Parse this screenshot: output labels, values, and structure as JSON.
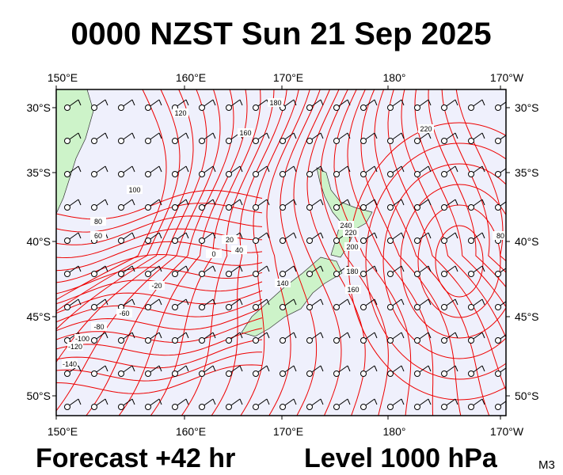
{
  "header": {
    "title": "0000 NZST Sun 21 Sep 2025"
  },
  "map": {
    "lon_labels_top": [
      "150°E",
      "160°E",
      "170°E",
      "180°",
      "170°W"
    ],
    "lon_labels_bottom": [
      "150°E",
      "160°E",
      "170°E",
      "180°",
      "170°W"
    ],
    "lat_labels_left": [
      "30°S",
      "35°S",
      "40°S",
      "45°S",
      "50°S"
    ],
    "lat_labels_right": [
      "30°S",
      "35°S",
      "40°S",
      "45°S",
      "50°S"
    ],
    "contour_labels": [
      "120",
      "160",
      "180",
      "100",
      "80",
      "60",
      "40",
      "20",
      "0",
      "-20",
      "-60",
      "-80",
      "-100",
      "-120",
      "-140",
      "140",
      "220",
      "240",
      "220",
      "200",
      "180",
      "160",
      "80"
    ]
  },
  "footer": {
    "forecast": "Forecast +42 hr",
    "level": "Level 1000 hPa",
    "model": "M3"
  }
}
